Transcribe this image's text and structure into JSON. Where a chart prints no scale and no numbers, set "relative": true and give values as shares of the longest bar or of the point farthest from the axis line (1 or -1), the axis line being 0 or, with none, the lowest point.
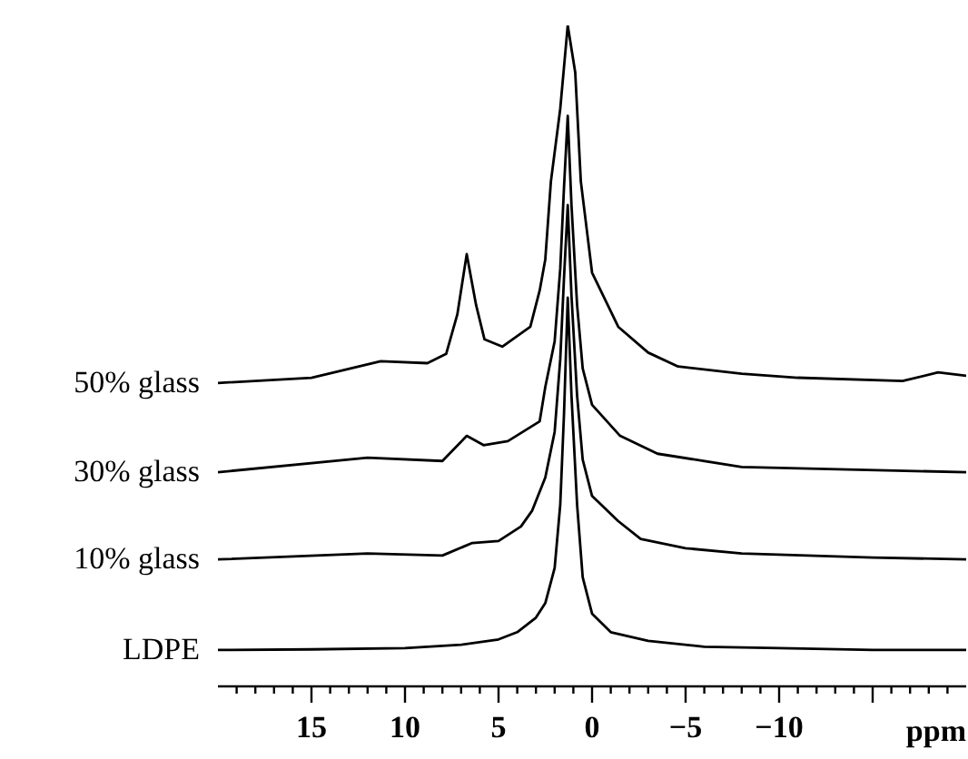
{
  "chart_data": {
    "type": "line",
    "relative": true,
    "xlabel": "ppm",
    "xlim": [
      20,
      -20
    ],
    "xticks": [
      {
        "value": 19,
        "label": null
      },
      {
        "value": 18,
        "label": null
      },
      {
        "value": 17,
        "label": null
      },
      {
        "value": 16,
        "label": null
      },
      15,
      {
        "value": 14,
        "label": null
      },
      {
        "value": 13,
        "label": null
      },
      {
        "value": 12,
        "label": null
      },
      {
        "value": 11,
        "label": null
      },
      10,
      {
        "value": 9,
        "label": null
      },
      {
        "value": 8,
        "label": null
      },
      {
        "value": 7,
        "label": null
      },
      {
        "value": 6,
        "label": null
      },
      5,
      {
        "value": 4,
        "label": null
      },
      {
        "value": 3,
        "label": null
      },
      {
        "value": 2,
        "label": null
      },
      {
        "value": 1,
        "label": null
      },
      0,
      {
        "value": -1,
        "label": null
      },
      {
        "value": -2,
        "label": null
      },
      {
        "value": -3,
        "label": null
      },
      {
        "value": -4,
        "label": null
      },
      {
        "value": -5,
        "label": "−5"
      },
      {
        "value": -6,
        "label": null
      },
      {
        "value": -7,
        "label": null
      },
      {
        "value": -8,
        "label": null
      },
      {
        "value": -9,
        "label": null
      },
      {
        "value": -10,
        "label": "−10"
      },
      {
        "value": -11,
        "label": null
      },
      {
        "value": -12,
        "label": null
      },
      {
        "value": -13,
        "label": null
      },
      {
        "value": -14,
        "label": null
      },
      {
        "value": -15,
        "label": null
      },
      {
        "value": -16,
        "label": null
      },
      {
        "value": -17,
        "label": null
      },
      {
        "value": -18,
        "label": null
      },
      {
        "value": -19,
        "label": null
      }
    ],
    "series": [
      {
        "name": "50% glass",
        "color": "#000000",
        "x": [
          20,
          15,
          11.3,
          8.8,
          7.8,
          7.2,
          6.7,
          6.2,
          5.75,
          4.8,
          3.3,
          2.8,
          2.5,
          2.2,
          1.7,
          1.3,
          0.9,
          0.6,
          0,
          -1.4,
          -3,
          -4.6,
          -8,
          -11,
          -16.6,
          -18.5,
          -20
        ],
        "values": [
          0.459,
          0.467,
          0.492,
          0.489,
          0.503,
          0.563,
          0.654,
          0.577,
          0.525,
          0.514,
          0.544,
          0.599,
          0.646,
          0.764,
          0.874,
          1,
          0.929,
          0.764,
          0.626,
          0.544,
          0.505,
          0.484,
          0.473,
          0.467,
          0.462,
          0.475,
          0.47
        ]
      },
      {
        "name": "30% glass",
        "color": "#000000",
        "x": [
          20,
          12,
          8,
          6.7,
          5.8,
          4.5,
          2.8,
          2.5,
          2,
          1.7,
          1.5,
          1.3,
          1.1,
          0.8,
          0.5,
          0,
          -1.5,
          -3.5,
          -8,
          -20
        ],
        "values": [
          0.324,
          0.346,
          0.341,
          0.379,
          0.365,
          0.371,
          0.401,
          0.453,
          0.522,
          0.632,
          0.755,
          0.863,
          0.728,
          0.577,
          0.481,
          0.426,
          0.379,
          0.352,
          0.332,
          0.324
        ]
      },
      {
        "name": "10% glass",
        "color": "#000000",
        "x": [
          20,
          12,
          8,
          6.4,
          5,
          3.8,
          3.2,
          2.5,
          2,
          1.7,
          1.5,
          1.3,
          1.1,
          0.8,
          0.5,
          0,
          -1.4,
          -2.6,
          -5,
          -8,
          -15,
          -20
        ],
        "values": [
          0.192,
          0.201,
          0.198,
          0.217,
          0.22,
          0.242,
          0.266,
          0.316,
          0.385,
          0.495,
          0.618,
          0.728,
          0.591,
          0.44,
          0.343,
          0.288,
          0.25,
          0.223,
          0.209,
          0.201,
          0.195,
          0.192
        ]
      },
      {
        "name": "LDPE",
        "color": "#000000",
        "x": [
          20,
          15,
          10,
          7,
          5,
          4,
          3,
          2.5,
          2,
          1.7,
          1.5,
          1.3,
          1.1,
          0.8,
          0.5,
          0,
          -1,
          -3,
          -6,
          -10,
          -15,
          -20
        ],
        "values": [
          0.055,
          0.056,
          0.058,
          0.063,
          0.071,
          0.082,
          0.104,
          0.126,
          0.179,
          0.275,
          0.412,
          0.588,
          0.44,
          0.275,
          0.165,
          0.11,
          0.082,
          0.069,
          0.06,
          0.058,
          0.055,
          0.055
        ]
      }
    ]
  }
}
